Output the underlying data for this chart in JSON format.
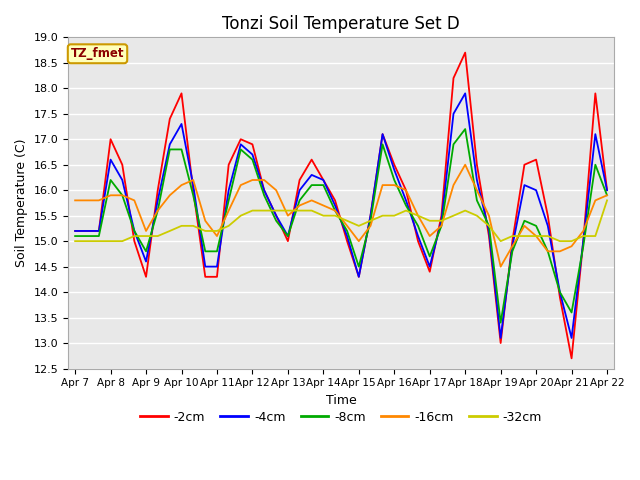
{
  "title": "Tonzi Soil Temperature Set D",
  "xlabel": "Time",
  "ylabel": "Soil Temperature (C)",
  "ylim": [
    12.5,
    19.0
  ],
  "legend_label": "TZ_fmet",
  "series_labels": [
    "-2cm",
    "-4cm",
    "-8cm",
    "-16cm",
    "-32cm"
  ],
  "series_colors": [
    "#ff0000",
    "#0000ff",
    "#00aa00",
    "#ff8800",
    "#cccc00"
  ],
  "plot_bg_color": "#e8e8e8",
  "xtick_labels": [
    "Apr 7",
    "Apr 8",
    "Apr 9",
    "Apr 10",
    "Apr 11",
    "Apr 12",
    "Apr 13",
    "Apr 14",
    "Apr 15",
    "Apr 16",
    "Apr 17",
    "Apr 18",
    "Apr 19",
    "Apr 20",
    "Apr 21",
    "Apr 22"
  ],
  "x": [
    0,
    0.33,
    0.67,
    1,
    1.33,
    1.67,
    2,
    2.33,
    2.67,
    3,
    3.33,
    3.67,
    4,
    4.33,
    4.67,
    5,
    5.33,
    5.67,
    6,
    6.33,
    6.67,
    7,
    7.33,
    7.67,
    8,
    8.33,
    8.67,
    9,
    9.33,
    9.67,
    10,
    10.33,
    10.67,
    11,
    11.33,
    11.67,
    12,
    12.33,
    12.67,
    13,
    13.33,
    13.67,
    14,
    14.33,
    14.67,
    15
  ],
  "y_2cm": [
    15.2,
    15.2,
    15.2,
    17.0,
    16.5,
    15.0,
    14.3,
    16.0,
    17.4,
    17.9,
    16.0,
    14.3,
    14.3,
    16.5,
    17.0,
    16.9,
    16.0,
    15.5,
    15.0,
    16.2,
    16.6,
    16.2,
    15.8,
    15.0,
    14.3,
    15.5,
    17.1,
    16.5,
    16.0,
    15.0,
    14.4,
    15.5,
    18.2,
    18.7,
    16.5,
    15.1,
    13.0,
    15.0,
    16.5,
    16.6,
    15.5,
    13.9,
    12.7,
    15.0,
    17.9,
    16.0
  ],
  "y_4cm": [
    15.2,
    15.2,
    15.2,
    16.6,
    16.2,
    15.2,
    14.6,
    15.8,
    16.9,
    17.3,
    16.1,
    14.5,
    14.5,
    16.0,
    16.9,
    16.7,
    16.0,
    15.5,
    15.1,
    16.0,
    16.3,
    16.2,
    15.7,
    15.1,
    14.3,
    15.5,
    17.1,
    16.4,
    15.8,
    15.1,
    14.5,
    15.4,
    17.5,
    17.9,
    16.2,
    15.2,
    13.1,
    14.9,
    16.1,
    16.0,
    15.3,
    14.0,
    13.1,
    15.0,
    17.1,
    16.0
  ],
  "y_8cm": [
    15.1,
    15.1,
    15.1,
    16.2,
    15.9,
    15.2,
    14.8,
    15.6,
    16.8,
    16.8,
    15.9,
    14.8,
    14.8,
    15.8,
    16.8,
    16.6,
    15.9,
    15.4,
    15.1,
    15.8,
    16.1,
    16.1,
    15.6,
    15.2,
    14.5,
    15.4,
    16.9,
    16.2,
    15.7,
    15.3,
    14.7,
    15.3,
    16.9,
    17.2,
    15.8,
    15.3,
    13.4,
    14.8,
    15.4,
    15.3,
    14.8,
    14.0,
    13.6,
    14.9,
    16.5,
    15.9
  ],
  "y_16cm": [
    15.8,
    15.8,
    15.8,
    15.9,
    15.9,
    15.8,
    15.2,
    15.6,
    15.9,
    16.1,
    16.2,
    15.4,
    15.1,
    15.6,
    16.1,
    16.2,
    16.2,
    16.0,
    15.5,
    15.7,
    15.8,
    15.7,
    15.6,
    15.3,
    15.0,
    15.3,
    16.1,
    16.1,
    16.0,
    15.5,
    15.1,
    15.3,
    16.1,
    16.5,
    16.0,
    15.5,
    14.5,
    14.9,
    15.3,
    15.1,
    14.8,
    14.8,
    14.9,
    15.2,
    15.8,
    15.9
  ],
  "y_32cm": [
    15.0,
    15.0,
    15.0,
    15.0,
    15.0,
    15.1,
    15.1,
    15.1,
    15.2,
    15.3,
    15.3,
    15.2,
    15.2,
    15.3,
    15.5,
    15.6,
    15.6,
    15.6,
    15.6,
    15.6,
    15.6,
    15.5,
    15.5,
    15.4,
    15.3,
    15.4,
    15.5,
    15.5,
    15.6,
    15.5,
    15.4,
    15.4,
    15.5,
    15.6,
    15.5,
    15.3,
    15.0,
    15.1,
    15.1,
    15.1,
    15.1,
    15.0,
    15.0,
    15.1,
    15.1,
    15.8
  ],
  "yticks": [
    12.5,
    13.0,
    13.5,
    14.0,
    14.5,
    15.0,
    15.5,
    16.0,
    16.5,
    17.0,
    17.5,
    18.0,
    18.5,
    19.0
  ]
}
